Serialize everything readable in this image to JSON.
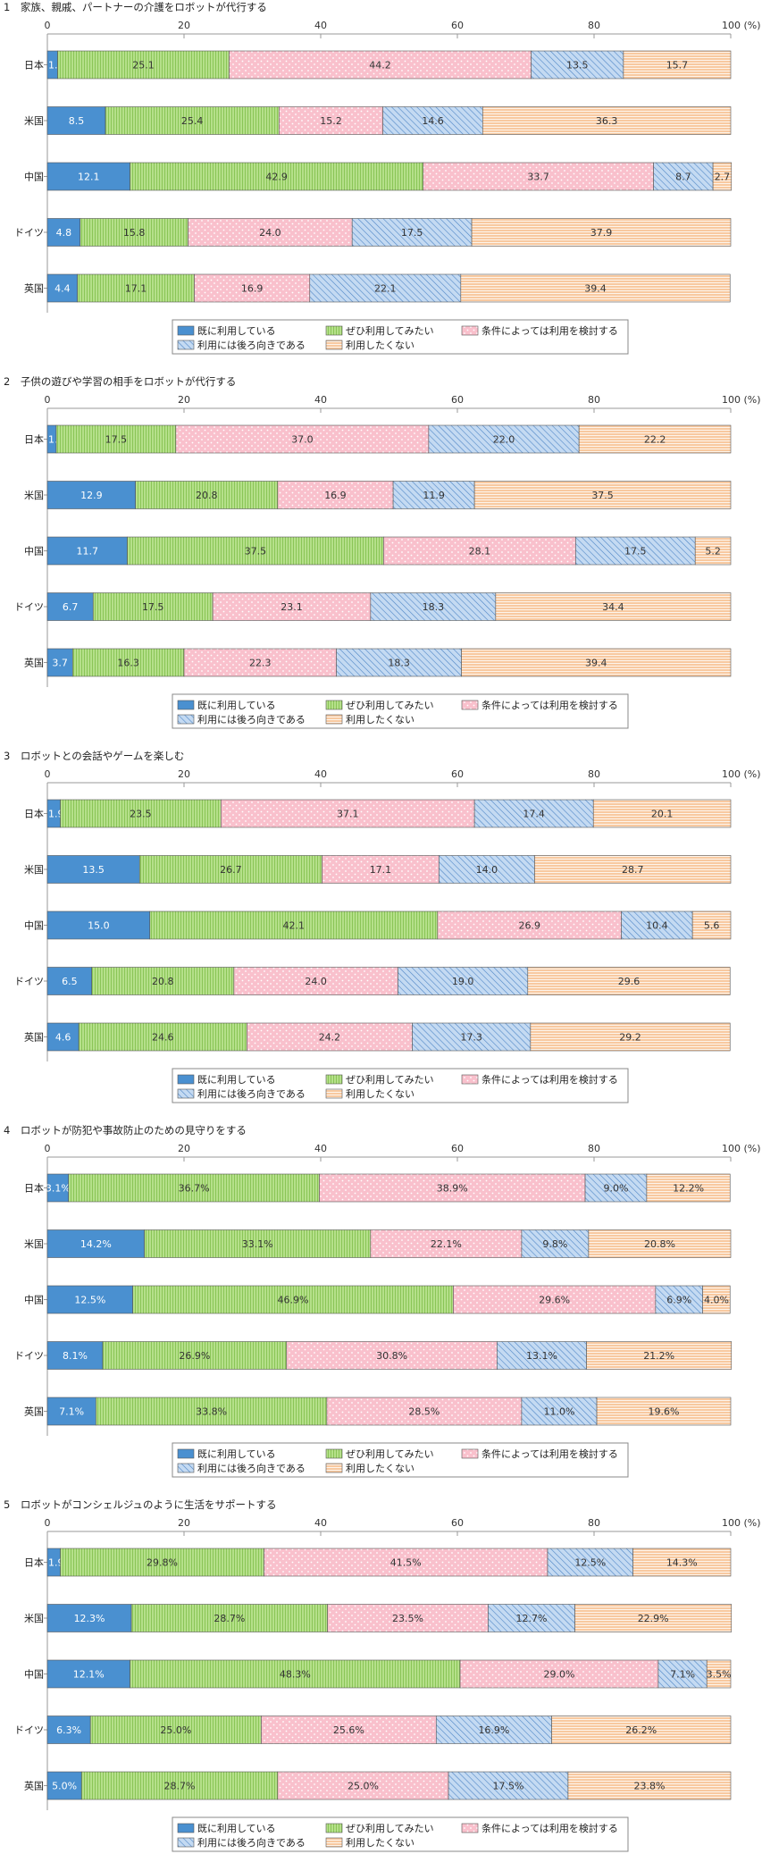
{
  "categories": [
    "日本",
    "米国",
    "中国",
    "ドイツ",
    "英国"
  ],
  "axis": {
    "ticks": [
      0,
      20,
      40,
      60,
      80,
      100
    ],
    "unit": "(%)"
  },
  "series_styles": [
    {
      "fill": "#4a90d0",
      "pattern": "none"
    },
    {
      "fill": "#b5e08a",
      "pattern": "vlines"
    },
    {
      "fill": "#f9c0cc",
      "pattern": "dots"
    },
    {
      "fill": "#c4daf2",
      "pattern": "diag"
    },
    {
      "fill": "#f8c9a0",
      "pattern": "hlines"
    }
  ],
  "legend": {
    "items": [
      "既に利用している",
      "ぜひ利用してみたい",
      "条件によっては利用を検討する",
      "利用には後ろ向きである",
      "利用したくない"
    ],
    "placement": "bottom"
  },
  "chart_data": [
    {
      "type": "bar",
      "orientation": "horizontal",
      "stacked": true,
      "title": "1　家族、親戚、パートナーの介護をロボットが代行する",
      "xlim": [
        0,
        100
      ],
      "categories": [
        "日本",
        "米国",
        "中国",
        "ドイツ",
        "英国"
      ],
      "series": [
        {
          "name": "既に利用している",
          "values": [
            1.5,
            8.5,
            12.1,
            4.8,
            4.4
          ]
        },
        {
          "name": "ぜひ利用してみたい",
          "values": [
            25.1,
            25.4,
            42.9,
            15.8,
            17.1
          ]
        },
        {
          "name": "条件によっては利用を検討する",
          "values": [
            44.2,
            15.2,
            33.7,
            24.0,
            16.9
          ]
        },
        {
          "name": "利用には後ろ向きである",
          "values": [
            13.5,
            14.6,
            8.7,
            17.5,
            22.1
          ]
        },
        {
          "name": "利用したくない",
          "values": [
            15.7,
            36.3,
            2.7,
            37.9,
            39.4
          ]
        }
      ],
      "labels": [
        [
          "1.5",
          "8.5",
          "12.1",
          "4.8",
          "4.4"
        ],
        [
          "25.1",
          "25.4",
          "42.9",
          "15.8",
          "17.1"
        ],
        [
          "44.2",
          "15.2",
          "33.7",
          "24.0",
          "16.9"
        ],
        [
          "13.5",
          "14.6",
          "8.7",
          "17.5",
          "22.1"
        ],
        [
          "15.7",
          "36.3",
          "2.7",
          "37.9",
          "39.4"
        ]
      ]
    },
    {
      "type": "bar",
      "orientation": "horizontal",
      "stacked": true,
      "title": "2　子供の遊びや学習の相手をロボットが代行する",
      "xlim": [
        0,
        100
      ],
      "categories": [
        "日本",
        "米国",
        "中国",
        "ドイツ",
        "英国"
      ],
      "series": [
        {
          "name": "既に利用している",
          "values": [
            1.3,
            12.9,
            11.7,
            6.7,
            3.7
          ]
        },
        {
          "name": "ぜひ利用してみたい",
          "values": [
            17.5,
            20.8,
            37.5,
            17.5,
            16.3
          ]
        },
        {
          "name": "条件によっては利用を検討する",
          "values": [
            37.0,
            16.9,
            28.1,
            23.1,
            22.3
          ]
        },
        {
          "name": "利用には後ろ向きである",
          "values": [
            22.0,
            11.9,
            17.5,
            18.3,
            18.3
          ]
        },
        {
          "name": "利用したくない",
          "values": [
            22.2,
            37.5,
            5.2,
            34.4,
            39.4
          ]
        }
      ],
      "labels": [
        [
          "1.3",
          "12.9",
          "11.7",
          "6.7",
          "3.7"
        ],
        [
          "17.5",
          "20.8",
          "37.5",
          "17.5",
          "16.3"
        ],
        [
          "37.0",
          "16.9",
          "28.1",
          "23.1",
          "22.3"
        ],
        [
          "22.0",
          "11.9",
          "17.5",
          "18.3",
          "18.3"
        ],
        [
          "22.2",
          "37.5",
          "5.2",
          "34.4",
          "39.4"
        ]
      ]
    },
    {
      "type": "bar",
      "orientation": "horizontal",
      "stacked": true,
      "title": "3　ロボットとの会話やゲームを楽しむ",
      "xlim": [
        0,
        100
      ],
      "categories": [
        "日本",
        "米国",
        "中国",
        "ドイツ",
        "英国"
      ],
      "series": [
        {
          "name": "既に利用している",
          "values": [
            1.9,
            13.5,
            15.0,
            6.5,
            4.6
          ]
        },
        {
          "name": "ぜひ利用してみたい",
          "values": [
            23.5,
            26.7,
            42.1,
            20.8,
            24.6
          ]
        },
        {
          "name": "条件によっては利用を検討する",
          "values": [
            37.1,
            17.1,
            26.9,
            24.0,
            24.2
          ]
        },
        {
          "name": "利用には後ろ向きである",
          "values": [
            17.4,
            14.0,
            10.4,
            19.0,
            17.3
          ]
        },
        {
          "name": "利用したくない",
          "values": [
            20.1,
            28.7,
            5.6,
            29.6,
            29.2
          ]
        }
      ],
      "labels": [
        [
          "1.9",
          "13.5",
          "15.0",
          "6.5",
          "4.6"
        ],
        [
          "23.5",
          "26.7",
          "42.1",
          "20.8",
          "24.6"
        ],
        [
          "37.1",
          "17.1",
          "26.9",
          "24.0",
          "24.2"
        ],
        [
          "17.4",
          "14.0",
          "10.4",
          "19.0",
          "17.3"
        ],
        [
          "20.1",
          "28.7",
          "5.6",
          "29.6",
          "29.2"
        ]
      ]
    },
    {
      "type": "bar",
      "orientation": "horizontal",
      "stacked": true,
      "title": "4　ロボットが防犯や事故防止のための見守りをする",
      "xlim": [
        0,
        100
      ],
      "categories": [
        "日本",
        "米国",
        "中国",
        "ドイツ",
        "英国"
      ],
      "series": [
        {
          "name": "既に利用している",
          "values": [
            3.1,
            14.2,
            12.5,
            8.1,
            7.1
          ]
        },
        {
          "name": "ぜひ利用してみたい",
          "values": [
            36.7,
            33.1,
            46.9,
            26.9,
            33.8
          ]
        },
        {
          "name": "条件によっては利用を検討する",
          "values": [
            38.9,
            22.1,
            29.6,
            30.8,
            28.5
          ]
        },
        {
          "name": "利用には後ろ向きである",
          "values": [
            9.0,
            9.8,
            6.9,
            13.1,
            11.0
          ]
        },
        {
          "name": "利用したくない",
          "values": [
            12.2,
            20.8,
            4.0,
            21.2,
            19.6
          ]
        }
      ],
      "labels": [
        [
          "3.1%",
          "14.2%",
          "12.5%",
          "8.1%",
          "7.1%"
        ],
        [
          "36.7%",
          "33.1%",
          "46.9%",
          "26.9%",
          "33.8%"
        ],
        [
          "38.9%",
          "22.1%",
          "29.6%",
          "30.8%",
          "28.5%"
        ],
        [
          "9.0%",
          "9.8%",
          "6.9%",
          "13.1%",
          "11.0%"
        ],
        [
          "12.2%",
          "20.8%",
          "4.0%",
          "21.2%",
          "19.6%"
        ]
      ]
    },
    {
      "type": "bar",
      "orientation": "horizontal",
      "stacked": true,
      "title": "5　ロボットがコンシェルジュのように生活をサポートする",
      "xlim": [
        0,
        100
      ],
      "categories": [
        "日本",
        "米国",
        "中国",
        "ドイツ",
        "英国"
      ],
      "series": [
        {
          "name": "既に利用している",
          "values": [
            1.9,
            12.3,
            12.1,
            6.3,
            5.0
          ]
        },
        {
          "name": "ぜひ利用してみたい",
          "values": [
            29.8,
            28.7,
            48.3,
            25.0,
            28.7
          ]
        },
        {
          "name": "条件によっては利用を検討する",
          "values": [
            41.5,
            23.5,
            29.0,
            25.6,
            25.0
          ]
        },
        {
          "name": "利用には後ろ向きである",
          "values": [
            12.5,
            12.7,
            7.1,
            16.9,
            17.5
          ]
        },
        {
          "name": "利用したくない",
          "values": [
            14.3,
            22.9,
            3.5,
            26.2,
            23.8
          ]
        }
      ],
      "labels": [
        [
          "1.9%",
          "12.3%",
          "12.1%",
          "6.3%",
          "5.0%"
        ],
        [
          "29.8%",
          "28.7%",
          "48.3%",
          "25.0%",
          "28.7%"
        ],
        [
          "41.5%",
          "23.5%",
          "29.0%",
          "25.6%",
          "25.0%"
        ],
        [
          "12.5%",
          "12.7%",
          "7.1%",
          "16.9%",
          "17.5%"
        ],
        [
          "14.3%",
          "22.9%",
          "3.5%",
          "26.2%",
          "23.8%"
        ]
      ]
    }
  ]
}
